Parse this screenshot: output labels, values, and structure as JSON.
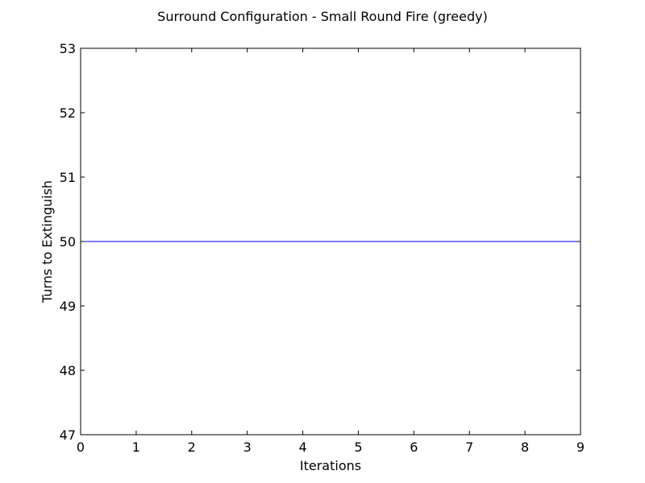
{
  "chart_data": {
    "type": "line",
    "title": "Surround Configuration - Small Round Fire (greedy)",
    "xlabel": "Iterations",
    "ylabel": "Turns to Extinguish",
    "xlim": [
      0,
      9
    ],
    "ylim": [
      47,
      53
    ],
    "xticks": [
      "0",
      "1",
      "2",
      "3",
      "4",
      "5",
      "6",
      "7",
      "8",
      "9"
    ],
    "yticks": [
      "47",
      "48",
      "49",
      "50",
      "51",
      "52",
      "53"
    ],
    "grid": false,
    "series": [
      {
        "color": "#0000ff",
        "x": [
          0,
          1,
          2,
          3,
          4,
          5,
          6,
          7,
          8,
          9
        ],
        "y": [
          50,
          50,
          50,
          50,
          50,
          50,
          50,
          50,
          50,
          50
        ]
      }
    ]
  }
}
